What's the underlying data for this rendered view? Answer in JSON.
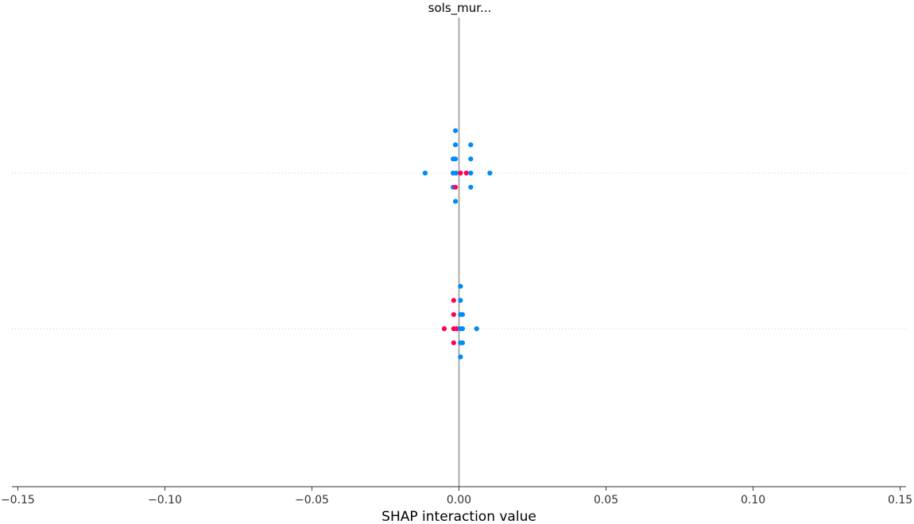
{
  "chart_data": {
    "type": "scatter",
    "title": "sols_mur...",
    "xlabel": "SHAP interaction value",
    "xlim": [
      -0.152,
      0.152
    ],
    "xticks": [
      {
        "value": -0.15,
        "label": "−0.15"
      },
      {
        "value": -0.1,
        "label": "−0.10"
      },
      {
        "value": -0.05,
        "label": "−0.05"
      },
      {
        "value": 0.0,
        "label": "0.00"
      },
      {
        "value": 0.05,
        "label": "0.05"
      },
      {
        "value": 0.1,
        "label": "0.10"
      },
      {
        "value": 0.15,
        "label": "0.15"
      }
    ],
    "grid": false,
    "zero_line": true,
    "colors": {
      "low": "#008bfb",
      "high": "#ff0052",
      "zero_line": "#999999",
      "row_line": "#cccccc"
    },
    "rows": [
      {
        "index": 0,
        "points": [
          {
            "x": -0.0012,
            "jitter": -3,
            "feature_value": "low"
          },
          {
            "x": -0.0012,
            "jitter": -2,
            "feature_value": "low"
          },
          {
            "x": 0.004,
            "jitter": -2,
            "feature_value": "low"
          },
          {
            "x": -0.002,
            "jitter": -1,
            "feature_value": "low"
          },
          {
            "x": -0.0012,
            "jitter": -1,
            "feature_value": "low"
          },
          {
            "x": 0.004,
            "jitter": -1,
            "feature_value": "low"
          },
          {
            "x": -0.0115,
            "jitter": 0,
            "feature_value": "low"
          },
          {
            "x": -0.002,
            "jitter": 0,
            "feature_value": "low"
          },
          {
            "x": -0.001,
            "jitter": 0,
            "feature_value": "low"
          },
          {
            "x": 0.0005,
            "jitter": 0,
            "feature_value": "high"
          },
          {
            "x": 0.0025,
            "jitter": 0,
            "feature_value": "high"
          },
          {
            "x": 0.004,
            "jitter": 0,
            "feature_value": "low"
          },
          {
            "x": 0.0105,
            "jitter": 0,
            "feature_value": "low"
          },
          {
            "x": -0.002,
            "jitter": 1,
            "feature_value": "low"
          },
          {
            "x": -0.0012,
            "jitter": 1,
            "feature_value": "high"
          },
          {
            "x": 0.004,
            "jitter": 1,
            "feature_value": "low"
          },
          {
            "x": -0.0012,
            "jitter": 2,
            "feature_value": "low"
          }
        ]
      },
      {
        "index": 1,
        "points": [
          {
            "x": 0.0005,
            "jitter": -3,
            "feature_value": "low"
          },
          {
            "x": -0.0018,
            "jitter": -2,
            "feature_value": "high"
          },
          {
            "x": 0.0005,
            "jitter": -2,
            "feature_value": "low"
          },
          {
            "x": -0.0018,
            "jitter": -1,
            "feature_value": "high"
          },
          {
            "x": 0.0005,
            "jitter": -1,
            "feature_value": "low"
          },
          {
            "x": 0.0012,
            "jitter": -1,
            "feature_value": "low"
          },
          {
            "x": -0.005,
            "jitter": 0,
            "feature_value": "high"
          },
          {
            "x": -0.0018,
            "jitter": 0,
            "feature_value": "high"
          },
          {
            "x": -0.0008,
            "jitter": 0,
            "feature_value": "high"
          },
          {
            "x": 0.0005,
            "jitter": 0,
            "feature_value": "low"
          },
          {
            "x": 0.0012,
            "jitter": 0,
            "feature_value": "low"
          },
          {
            "x": 0.006,
            "jitter": 0,
            "feature_value": "low"
          },
          {
            "x": -0.0018,
            "jitter": 1,
            "feature_value": "high"
          },
          {
            "x": 0.0005,
            "jitter": 1,
            "feature_value": "low"
          },
          {
            "x": 0.0012,
            "jitter": 1,
            "feature_value": "low"
          },
          {
            "x": 0.0005,
            "jitter": 2,
            "feature_value": "low"
          }
        ]
      }
    ]
  }
}
